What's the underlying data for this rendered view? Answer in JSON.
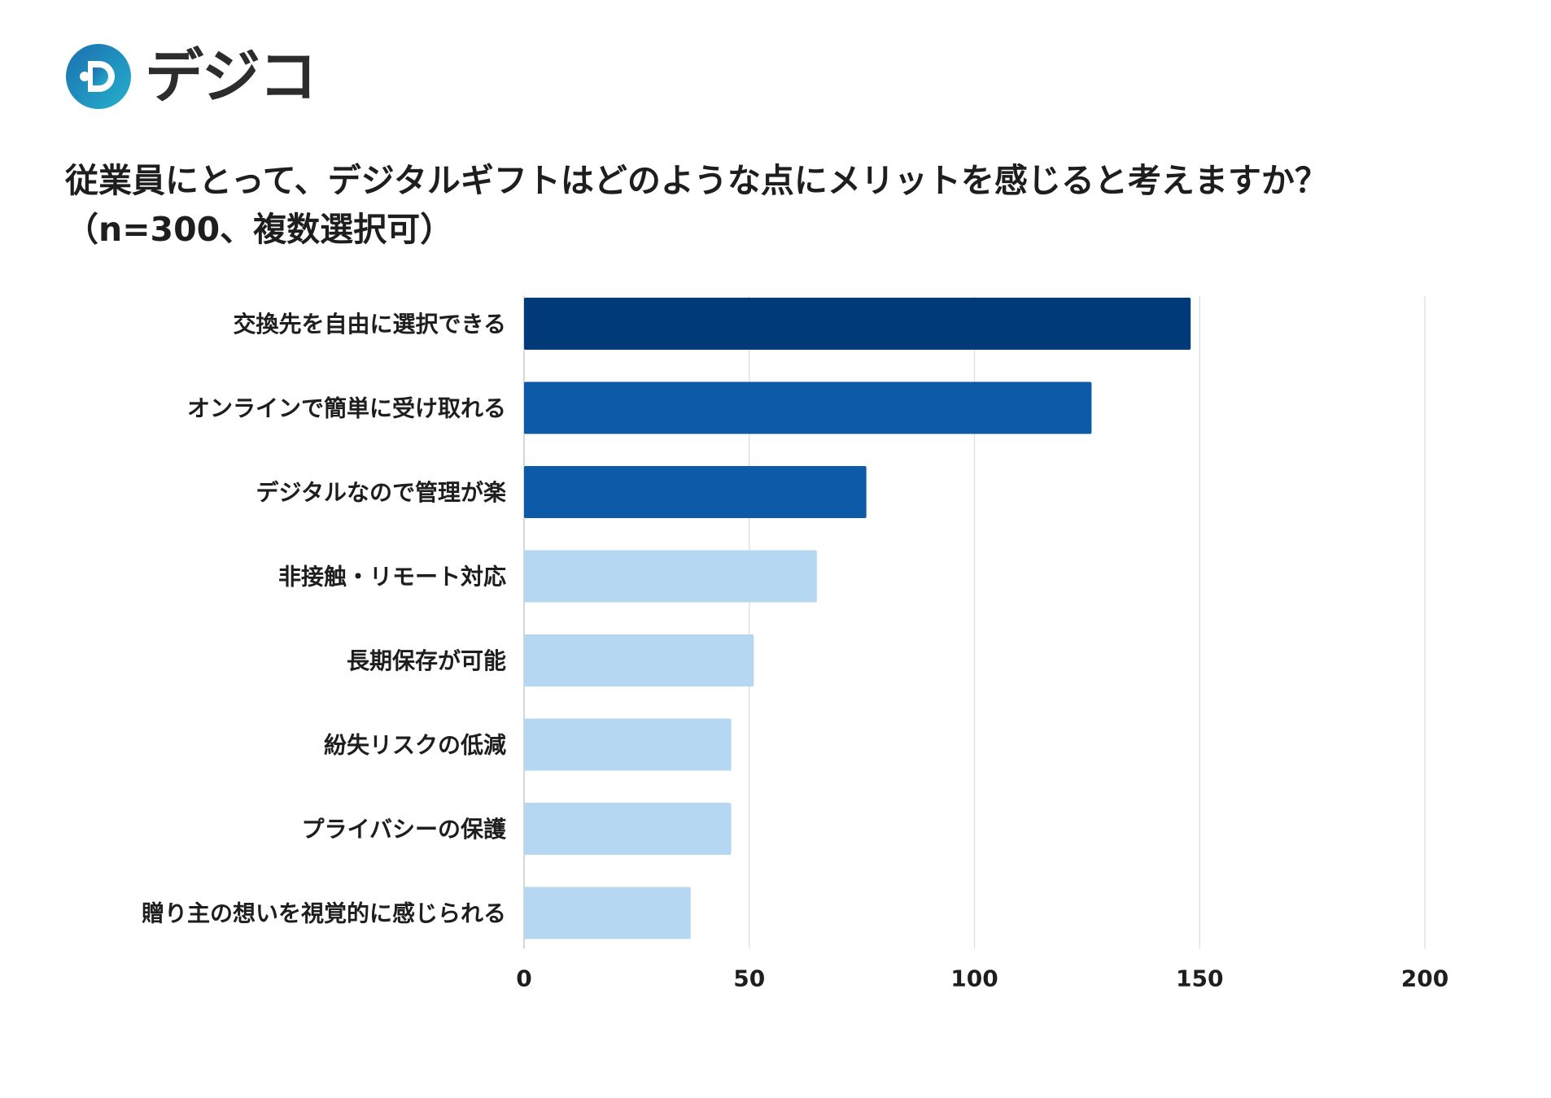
{
  "brand": {
    "name": "デジコ",
    "colors": {
      "logo_outer": "#1e88b8",
      "logo_inner": "#27a8c9",
      "logo_dots": "#2ab0d8"
    }
  },
  "title": {
    "line1": "従業員にとって、デジタルギフトはどのような点にメリットを感じると考えますか？",
    "line2": "（n=300、複数選択可）"
  },
  "chart_data": {
    "type": "bar",
    "orientation": "horizontal",
    "categories": [
      "交換先を自由に選択できる",
      "オンラインで簡単に受け取れる",
      "デジタルなので管理が楽",
      "非接触・リモート対応",
      "長期保存が可能",
      "紛失リスクの低減",
      "プライバシーの保護",
      "贈り主の想いを視覚的に感じられる"
    ],
    "values": [
      148,
      126,
      76,
      65,
      51,
      46,
      46,
      37
    ],
    "bar_colors": [
      "#003a78",
      "#0d5ba8",
      "#0d5ba8",
      "#b5d7f2",
      "#b5d7f2",
      "#b5d7f2",
      "#b5d7f2",
      "#b5d7f2"
    ],
    "xlim": [
      0,
      200
    ],
    "xticks": [
      0,
      50,
      100,
      150,
      200
    ],
    "grid": true,
    "legend": "none",
    "title": "従業員にとって、デジタルギフトはどのような点にメリットを感じると考えますか？（n=300、複数選択可）",
    "xlabel": "",
    "ylabel": ""
  }
}
